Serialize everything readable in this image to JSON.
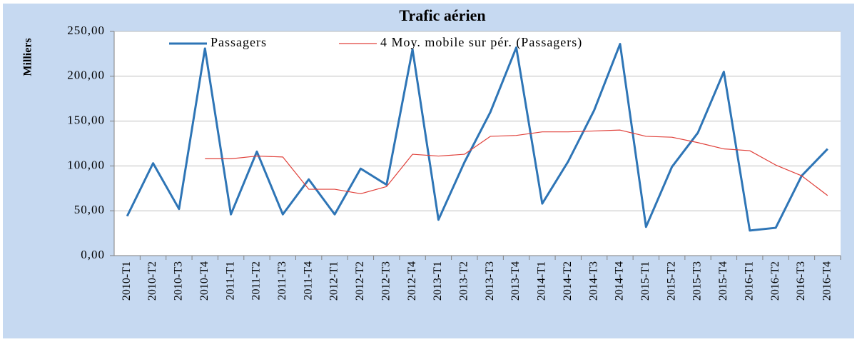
{
  "chart_data": {
    "type": "line",
    "title": "Trafic aérien",
    "y_label": "Milliers",
    "categories": [
      "2010-T1",
      "2010-T2",
      "2010-T3",
      "2010-T4",
      "2011-T1",
      "2011-T2",
      "2011-T3",
      "2011-T4",
      "2012-T1",
      "2012-T2",
      "2012-T3",
      "2012-T4",
      "2013-T1",
      "2013-T2",
      "2013-T3",
      "2013-T4",
      "2014-T1",
      "2014-T2",
      "2014-T3",
      "2014-T4",
      "2015-T1",
      "2015-T2",
      "2015-T3",
      "2015-T4",
      "2016-T1",
      "2016-T2",
      "2016-T3",
      "2016-T4"
    ],
    "series": [
      {
        "name": "Passagers",
        "color": "#2e75b6",
        "width": 3,
        "values": [
          44,
          103,
          52,
          231,
          46,
          116,
          46,
          85,
          46,
          97,
          79,
          230,
          40,
          104,
          160,
          232,
          58,
          105,
          162,
          236,
          32,
          99,
          137,
          205,
          28,
          31,
          89,
          119
        ]
      },
      {
        "name": "4 Moy. mobile sur pér. (Passagers)",
        "color": "#e0403a",
        "width": 1.2,
        "values": [
          null,
          null,
          null,
          108,
          108,
          111,
          110,
          74,
          74,
          69,
          77,
          113,
          111,
          113,
          133,
          134,
          138,
          138,
          139,
          140,
          133,
          132,
          126,
          119,
          117,
          101,
          89,
          67
        ]
      }
    ],
    "ylim": [
      0,
      250
    ],
    "yticks": [
      {
        "value": 0,
        "label": "0,00"
      },
      {
        "value": 50,
        "label": "50,00"
      },
      {
        "value": 100,
        "label": "100,00"
      },
      {
        "value": 150,
        "label": "150,00"
      },
      {
        "value": 200,
        "label": "200,00"
      },
      {
        "value": 250,
        "label": "250,00"
      }
    ],
    "grid": true,
    "legend": "top"
  }
}
